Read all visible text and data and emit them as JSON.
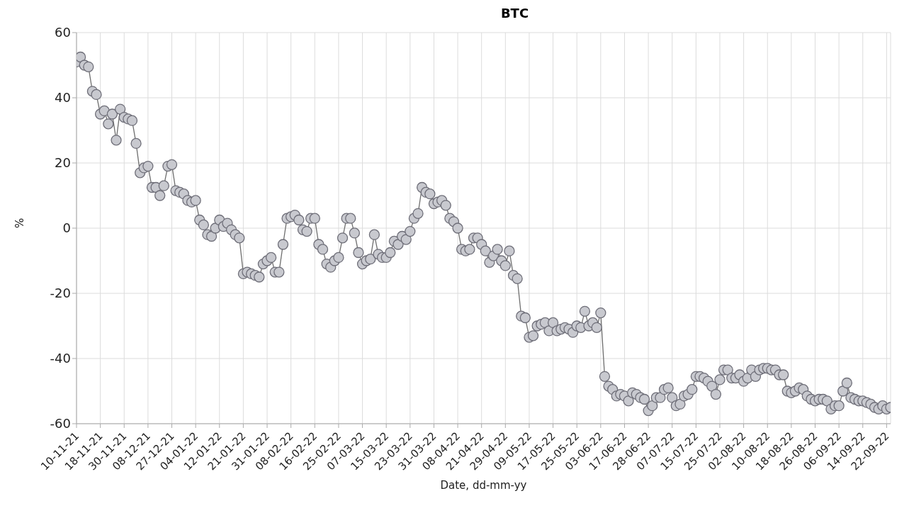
{
  "chart_data": {
    "type": "line",
    "title": "BTC",
    "xlabel": "Date, dd-mm-yy",
    "ylabel": "%",
    "categories": [
      "10-11-21",
      null,
      null,
      null,
      null,
      null,
      "18-11-21",
      null,
      null,
      null,
      null,
      null,
      "30-11-21",
      null,
      null,
      null,
      null,
      null,
      "08-12-21",
      null,
      null,
      null,
      null,
      null,
      "27-12-21",
      null,
      null,
      null,
      null,
      null,
      "04-01-22",
      null,
      null,
      null,
      null,
      null,
      "12-01-22",
      null,
      null,
      null,
      null,
      null,
      "21-01-22",
      null,
      null,
      null,
      null,
      null,
      "31-01-22",
      null,
      null,
      null,
      null,
      null,
      "08-02-22",
      null,
      null,
      null,
      null,
      null,
      "16-02-22",
      null,
      null,
      null,
      null,
      null,
      "25-02-22",
      null,
      null,
      null,
      null,
      null,
      "07-03-22",
      null,
      null,
      null,
      null,
      null,
      "15-03-22",
      null,
      null,
      null,
      null,
      null,
      "23-03-22",
      null,
      null,
      null,
      null,
      null,
      "31-03-22",
      null,
      null,
      null,
      null,
      null,
      "08-04-22",
      null,
      null,
      null,
      null,
      null,
      "21-04-22",
      null,
      null,
      null,
      null,
      null,
      "29-04-22",
      null,
      null,
      null,
      null,
      null,
      "09-05-22",
      null,
      null,
      null,
      null,
      null,
      "17-05-22",
      null,
      null,
      null,
      null,
      null,
      "25-05-22",
      null,
      null,
      null,
      null,
      null,
      "03-06-22",
      null,
      null,
      null,
      null,
      null,
      "17-06-22",
      null,
      null,
      null,
      null,
      null,
      "28-06-22",
      null,
      null,
      null,
      null,
      null,
      "07-07-22",
      null,
      null,
      null,
      null,
      null,
      "15-07-22",
      null,
      null,
      null,
      null,
      null,
      "25-07-22",
      null,
      null,
      null,
      null,
      null,
      "02-08-22",
      null,
      null,
      null,
      null,
      null,
      "10-08-22",
      null,
      null,
      null,
      null,
      null,
      "18-08-22",
      null,
      null,
      null,
      null,
      null,
      "26-08-22",
      null,
      null,
      null,
      null,
      null,
      "06-09-22",
      null,
      null,
      null,
      null,
      null,
      "14-09-22",
      null,
      null,
      null,
      null,
      null,
      "22-09-22",
      null
    ],
    "series": [
      {
        "color": "#c8c9cf",
        "values": [
          51,
          52.5,
          50,
          49.5,
          42,
          41,
          35,
          36,
          32,
          35,
          27,
          36.5,
          34,
          33.5,
          33,
          26,
          17,
          18.5,
          19,
          12.5,
          12.5,
          10,
          13,
          19,
          19.5,
          11.5,
          11,
          10.5,
          8.5,
          8,
          8.5,
          2.5,
          1,
          -2,
          -2.5,
          0,
          2.5,
          0.5,
          1.5,
          -0.5,
          -2,
          -3,
          -14,
          -13.5,
          -14,
          -14.5,
          -15,
          -11,
          -10,
          -9,
          -13.5,
          -13.5,
          -5,
          3,
          3.5,
          4,
          2.5,
          -0.5,
          -1,
          3,
          3,
          -5,
          -6.5,
          -11,
          -12,
          -10,
          -9,
          -3,
          3,
          3,
          -1.5,
          -7.5,
          -11,
          -10,
          -9.5,
          -2,
          -8,
          -9,
          -9,
          -7.5,
          -4,
          -5,
          -2.5,
          -3.5,
          -1,
          3,
          4.5,
          12.5,
          11,
          10.5,
          7.5,
          8,
          8.5,
          7,
          3,
          2,
          0,
          -6.5,
          -7,
          -6.5,
          -3,
          -3,
          -5,
          -7,
          -10.5,
          -8.5,
          -6.5,
          -10,
          -11.5,
          -7,
          -14.5,
          -15.5,
          -27,
          -27.5,
          -33.5,
          -33,
          -30,
          -29.5,
          -29,
          -31.5,
          -29,
          -31.5,
          -31,
          -30.5,
          -31,
          -32,
          -30,
          -30.5,
          -25.5,
          -30,
          -29,
          -30.5,
          -26,
          -45.5,
          -48.5,
          -49.5,
          -51.5,
          -51,
          -51.5,
          -53,
          -50.5,
          -51,
          -52,
          -52.5,
          -56,
          -54.5,
          -52,
          -52,
          -49.5,
          -49,
          -52,
          -54.5,
          -54,
          -51.5,
          -51,
          -49.5,
          -45.5,
          -45.5,
          -46,
          -47,
          -48.5,
          -51,
          -46.5,
          -43.5,
          -43.5,
          -46,
          -46,
          -45,
          -47,
          -46,
          -43.5,
          -45.5,
          -43.5,
          -43,
          -43,
          -43.5,
          -43.5,
          -45,
          -45,
          -50,
          -50.5,
          -50,
          -49,
          -49.5,
          -51.5,
          -52.5,
          -53,
          -52.5,
          -52.5,
          -53,
          -55.5,
          -54.5,
          -54.5,
          -50,
          -47.5,
          -52,
          -52.5,
          -53,
          -53,
          -53.5,
          -54,
          -55,
          -55.5,
          -54.5,
          -55.5,
          -55
        ]
      }
    ],
    "ylim": [
      -60,
      60
    ],
    "yticks": [
      -60,
      -40,
      -20,
      0,
      20,
      40,
      60
    ],
    "grid": true,
    "marker": "circle",
    "line_style": "solid"
  }
}
